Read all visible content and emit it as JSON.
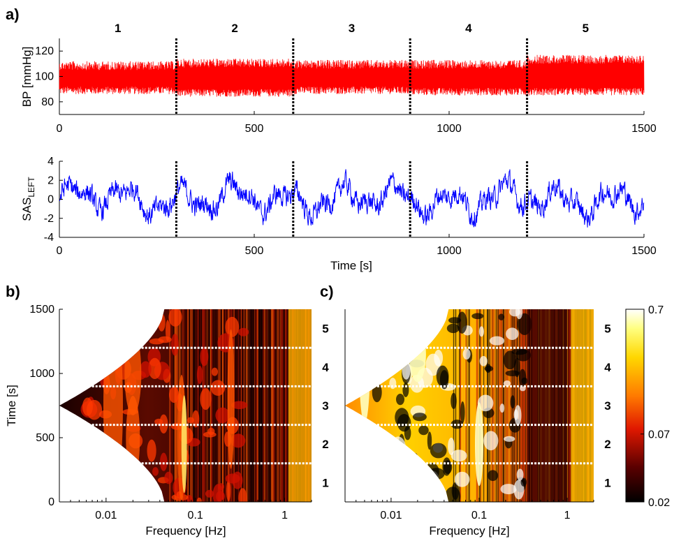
{
  "panels": {
    "a": "a)",
    "b": "b)",
    "c": "c)"
  },
  "chart_data": [
    {
      "type": "line",
      "panel": "a) top",
      "ylabel": "BP [mmHg]",
      "xlim": [
        0,
        1500
      ],
      "ylim": [
        70,
        130
      ],
      "xticks": [
        "0",
        "500",
        "1000",
        "1500"
      ],
      "yticks": [
        "80",
        "100",
        "120"
      ],
      "series": [
        {
          "color": "#ff0000",
          "envelope_low": [
            86,
            84,
            86,
            85,
            85
          ],
          "envelope_high": [
            112,
            114,
            113,
            113,
            117
          ]
        }
      ],
      "segment_boundaries": [
        300,
        600,
        900,
        1200
      ],
      "segment_labels": [
        "1",
        "2",
        "3",
        "4",
        "5"
      ]
    },
    {
      "type": "line",
      "panel": "a) bottom",
      "ylabel_main": "SAS",
      "ylabel_sub": "LEFT",
      "xlabel": "Time [s]",
      "xlim": [
        0,
        1500
      ],
      "ylim": [
        -4,
        4
      ],
      "xticks": [
        "0",
        "500",
        "1000",
        "1500"
      ],
      "yticks": [
        "4",
        "2",
        "0",
        "-2",
        "-4"
      ],
      "series": [
        {
          "color": "#0000ff",
          "range": [
            -3.8,
            3.4
          ]
        }
      ],
      "segment_boundaries": [
        300,
        600,
        900,
        1200
      ]
    },
    {
      "type": "heatmap",
      "panel": "b)",
      "xlabel": "Frequency [Hz]",
      "ylabel": "Time [s]",
      "xscale": "log",
      "xlim": [
        0.003,
        2
      ],
      "ylim": [
        0,
        1500
      ],
      "xticks": [
        "0.01",
        "0.1",
        "1"
      ],
      "yticks": [
        "0",
        "500",
        "1000",
        "1500"
      ],
      "segment_boundaries": [
        300,
        600,
        900,
        1200
      ],
      "segment_labels": [
        "1",
        "2",
        "3",
        "4",
        "5"
      ],
      "bright_bands_hz": [
        0.07,
        0.25,
        1.5
      ]
    },
    {
      "type": "heatmap",
      "panel": "c)",
      "xlabel": "Frequency [Hz]",
      "xscale": "log",
      "xlim": [
        0.003,
        2
      ],
      "ylim": [
        0,
        1500
      ],
      "xticks": [
        "0.01",
        "0.1",
        "1"
      ],
      "segment_boundaries": [
        300,
        600,
        900,
        1200
      ],
      "segment_labels": [
        "1",
        "2",
        "3",
        "4",
        "5"
      ],
      "colorbar": {
        "ticks": [
          "0.7",
          "0.07",
          "0.02"
        ],
        "colors": [
          "#000000",
          "#5a0000",
          "#ff3c00",
          "#ffa000",
          "#ffff50",
          "#ffffff"
        ]
      }
    }
  ]
}
